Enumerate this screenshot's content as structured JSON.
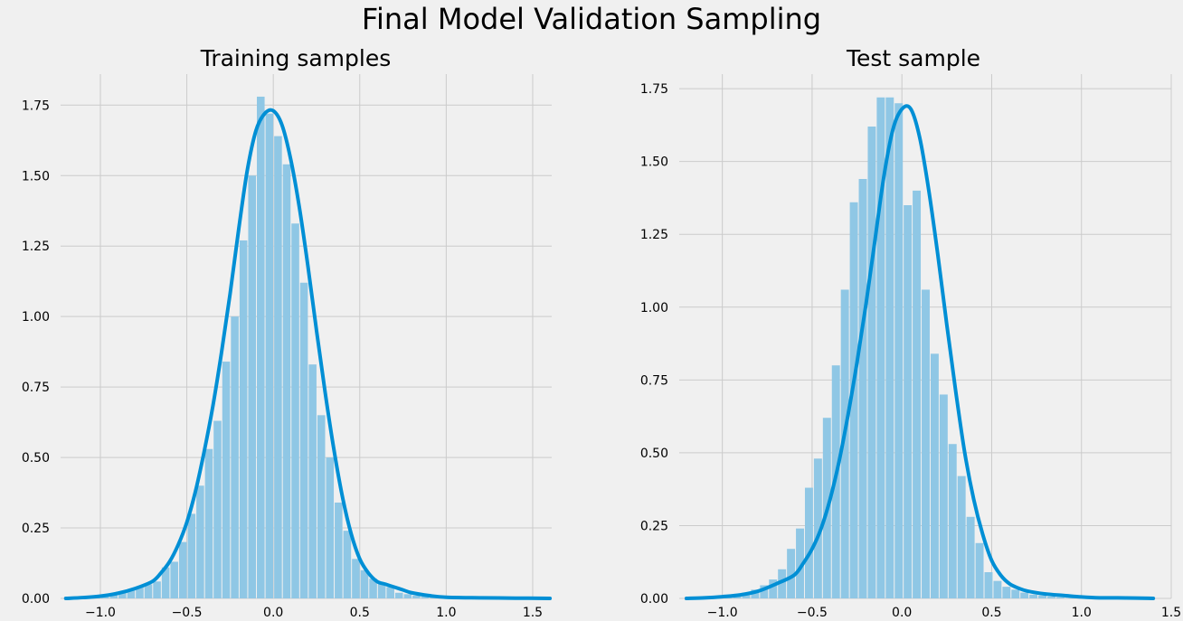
{
  "figure": {
    "suptitle": "Final Model Validation Sampling"
  },
  "colors": {
    "background": "#f0f0f0",
    "grid": "#cbcbcb",
    "hist_fill": "#8fc7e5",
    "kde_line": "#008fd5"
  },
  "chart_data": [
    {
      "type": "bar",
      "title": "Training samples",
      "grid": true,
      "xlim": [
        -1.23,
        1.61
      ],
      "ylim": [
        0,
        1.86
      ],
      "xticks": [
        -1.0,
        -0.5,
        0.0,
        0.5,
        1.0,
        1.5
      ],
      "xtick_labels": [
        "−1.0",
        "−0.5",
        "0.0",
        "0.5",
        "1.0",
        "1.5"
      ],
      "yticks": [
        0,
        0.25,
        0.5,
        0.75,
        1.0,
        1.25,
        1.5,
        1.75
      ],
      "ytick_labels": [
        "0.00",
        "0.25",
        "0.50",
        "0.75",
        "1.00",
        "1.25",
        "1.50",
        "1.75"
      ],
      "bin_start": -1.195,
      "bin_width": 0.05,
      "hist_values": [
        0,
        0.002,
        0.003,
        0.005,
        0.007,
        0.012,
        0.02,
        0.03,
        0.04,
        0.05,
        0.06,
        0.11,
        0.13,
        0.2,
        0.3,
        0.4,
        0.53,
        0.63,
        0.84,
        1.0,
        1.27,
        1.5,
        1.78,
        1.72,
        1.64,
        1.54,
        1.33,
        1.12,
        0.83,
        0.65,
        0.5,
        0.34,
        0.24,
        0.14,
        0.1,
        0.07,
        0.05,
        0.04,
        0.02,
        0.015,
        0.01,
        0.006,
        0.004,
        0.003,
        0.002,
        0.001,
        0.001,
        0.001,
        0.001,
        0.001,
        0.001,
        0.001,
        0.001,
        0.001,
        0.001,
        0.001,
        0
      ],
      "kde_x": [
        -1.2,
        -1.1,
        -1.0,
        -0.9,
        -0.8,
        -0.7,
        -0.65,
        -0.6,
        -0.55,
        -0.5,
        -0.45,
        -0.4,
        -0.35,
        -0.3,
        -0.25,
        -0.2,
        -0.15,
        -0.1,
        -0.05,
        0.0,
        0.05,
        0.1,
        0.15,
        0.2,
        0.25,
        0.3,
        0.35,
        0.4,
        0.45,
        0.5,
        0.55,
        0.6,
        0.65,
        0.7,
        0.75,
        0.8,
        0.9,
        1.0,
        1.2,
        1.4,
        1.6
      ],
      "kde_y": [
        0.0,
        0.003,
        0.008,
        0.018,
        0.035,
        0.06,
        0.09,
        0.13,
        0.19,
        0.27,
        0.38,
        0.52,
        0.68,
        0.87,
        1.08,
        1.31,
        1.52,
        1.66,
        1.72,
        1.73,
        1.68,
        1.56,
        1.39,
        1.18,
        0.95,
        0.73,
        0.53,
        0.36,
        0.23,
        0.14,
        0.09,
        0.06,
        0.05,
        0.04,
        0.03,
        0.02,
        0.01,
        0.004,
        0.002,
        0.001,
        0.0
      ]
    },
    {
      "type": "bar",
      "title": "Test sample",
      "grid": true,
      "xlim": [
        -1.24,
        1.5
      ],
      "ylim": [
        0,
        1.8
      ],
      "xticks": [
        -1.0,
        -0.5,
        0.0,
        0.5,
        1.0,
        1.5
      ],
      "xtick_labels": [
        "−1.0",
        "−0.5",
        "0.0",
        "0.5",
        "1.0",
        "1.5"
      ],
      "yticks": [
        0,
        0.25,
        0.5,
        0.75,
        1.0,
        1.25,
        1.5,
        1.75
      ],
      "ytick_labels": [
        "0.00",
        "0.25",
        "0.50",
        "0.75",
        "1.00",
        "1.25",
        "1.50",
        "1.75"
      ],
      "bin_start": -1.19,
      "bin_width": 0.05,
      "hist_values": [
        0,
        0.002,
        0.003,
        0.005,
        0.007,
        0.01,
        0.02,
        0.03,
        0.045,
        0.065,
        0.1,
        0.17,
        0.24,
        0.38,
        0.48,
        0.62,
        0.8,
        1.06,
        1.36,
        1.44,
        1.62,
        1.72,
        1.72,
        1.7,
        1.35,
        1.4,
        1.06,
        0.84,
        0.7,
        0.53,
        0.42,
        0.28,
        0.19,
        0.09,
        0.06,
        0.04,
        0.03,
        0.02,
        0.013,
        0.01,
        0.006,
        0.004,
        0.002,
        0.002,
        0.001,
        0.001,
        0.001,
        0.001,
        0.001,
        0.001,
        0
      ],
      "kde_x": [
        -1.2,
        -1.1,
        -1.0,
        -0.9,
        -0.8,
        -0.7,
        -0.6,
        -0.55,
        -0.5,
        -0.45,
        -0.4,
        -0.35,
        -0.3,
        -0.25,
        -0.2,
        -0.15,
        -0.1,
        -0.05,
        0.0,
        0.05,
        0.1,
        0.15,
        0.2,
        0.25,
        0.3,
        0.35,
        0.4,
        0.45,
        0.5,
        0.55,
        0.6,
        0.65,
        0.7,
        0.8,
        0.9,
        1.0,
        1.1,
        1.2,
        1.3,
        1.4
      ],
      "kde_y": [
        0.0,
        0.002,
        0.006,
        0.012,
        0.025,
        0.05,
        0.08,
        0.12,
        0.17,
        0.24,
        0.34,
        0.47,
        0.63,
        0.81,
        1.01,
        1.23,
        1.45,
        1.61,
        1.68,
        1.68,
        1.58,
        1.4,
        1.18,
        0.94,
        0.71,
        0.5,
        0.34,
        0.22,
        0.13,
        0.08,
        0.05,
        0.035,
        0.025,
        0.015,
        0.01,
        0.005,
        0.002,
        0.002,
        0.001,
        0.0
      ]
    }
  ]
}
